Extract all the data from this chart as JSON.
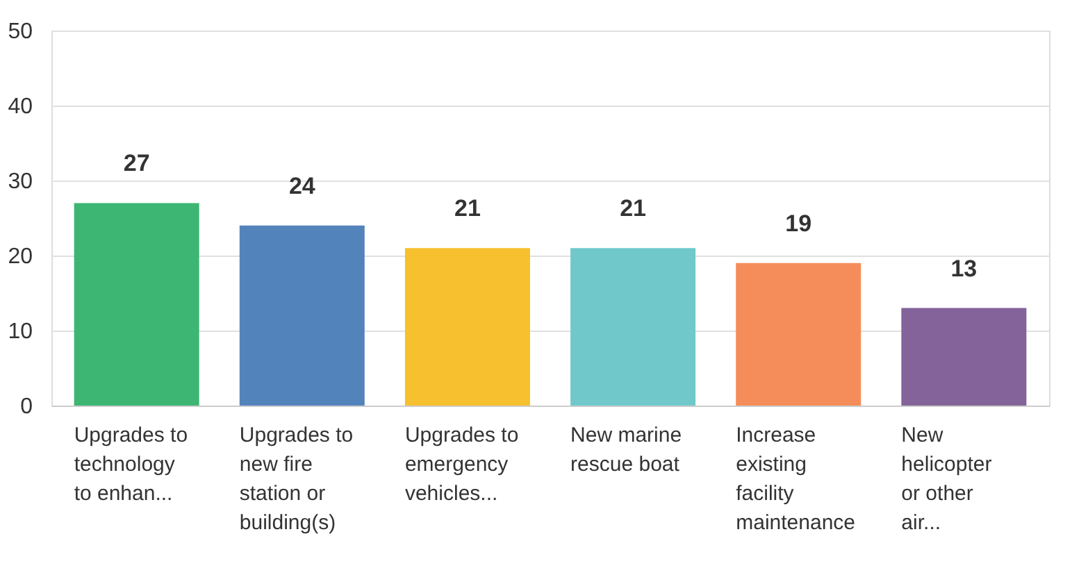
{
  "chart_data": {
    "type": "bar",
    "categories": [
      "Upgrades to technology to enhan...",
      "Upgrades to new fire station or building(s)",
      "Upgrades to emergency vehicles...",
      "New marine rescue boat",
      "Increase existing facility maintenance",
      "New helicopter or other air..."
    ],
    "values": [
      27,
      24,
      21,
      21,
      19,
      13
    ],
    "colors": [
      "#3cb672",
      "#5383bb",
      "#f7c02e",
      "#70c8cb",
      "#f58d5a",
      "#83639a"
    ],
    "ylim": [
      0,
      50
    ],
    "yticks": [
      0,
      10,
      20,
      30,
      40,
      50
    ],
    "grid": "y",
    "data_labels": true
  }
}
